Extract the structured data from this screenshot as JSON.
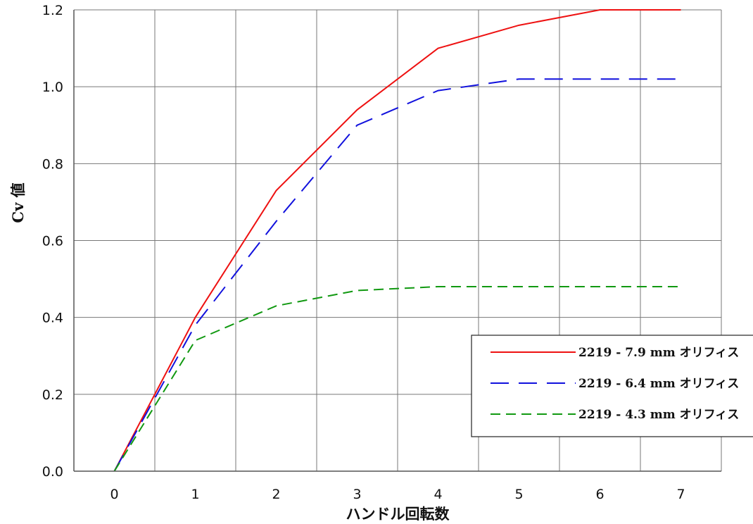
{
  "chart_data": {
    "type": "line",
    "xlabel": "ハンドル回転数",
    "ylabel": "Cv 値",
    "xlim": [
      -0.5,
      7.5
    ],
    "ylim": [
      0,
      1.2
    ],
    "x_ticks": [
      "0",
      "1",
      "2",
      "3",
      "4",
      "5",
      "6",
      "7"
    ],
    "y_ticks": [
      "0.0",
      "0.2",
      "0.4",
      "0.6",
      "0.8",
      "1.0",
      "1.2"
    ],
    "grid": true,
    "legend_position": "bottom-right",
    "series": [
      {
        "name": "2219 - 7.9 mm オリフィス",
        "color": "#ee1111",
        "dash": "solid",
        "points": [
          [
            0,
            0
          ],
          [
            1,
            0.4
          ],
          [
            2,
            0.73
          ],
          [
            3,
            0.94
          ],
          [
            4,
            1.1
          ],
          [
            5,
            1.16
          ],
          [
            6,
            1.2
          ],
          [
            7,
            1.2
          ]
        ]
      },
      {
        "name": "2219 - 6.4 mm オリフィス",
        "color": "#1111dd",
        "dash": "long-dash",
        "points": [
          [
            0,
            0
          ],
          [
            1,
            0.38
          ],
          [
            2,
            0.65
          ],
          [
            3,
            0.9
          ],
          [
            4,
            0.99
          ],
          [
            5,
            1.02
          ],
          [
            6,
            1.02
          ],
          [
            7,
            1.02
          ]
        ]
      },
      {
        "name": "2219 - 4.3 mm オリフィス",
        "color": "#119911",
        "dash": "short-dash",
        "points": [
          [
            0,
            0
          ],
          [
            1,
            0.34
          ],
          [
            2,
            0.43
          ],
          [
            3,
            0.47
          ],
          [
            4,
            0.48
          ],
          [
            5,
            0.48
          ],
          [
            6,
            0.48
          ],
          [
            7,
            0.48
          ]
        ]
      }
    ]
  }
}
